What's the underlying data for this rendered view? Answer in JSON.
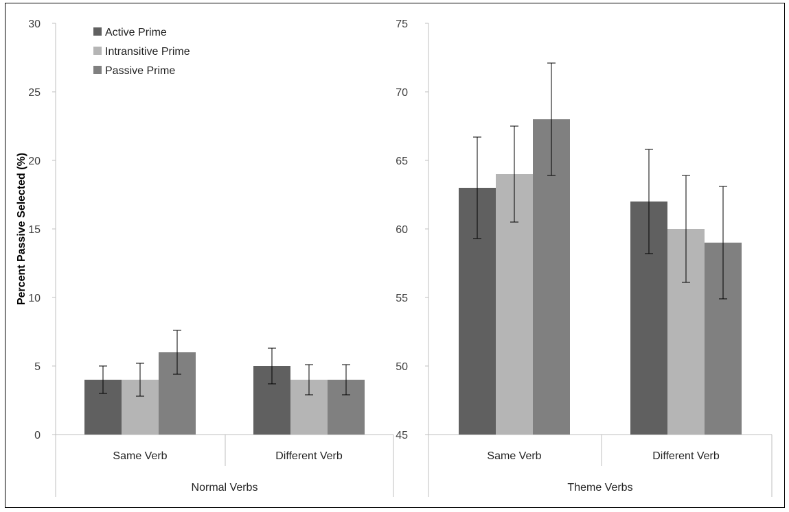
{
  "colors": {
    "Active Prime": "#606060",
    "Intransitive Prime": "#b5b5b5",
    "Passive Prime": "#808080",
    "axis": "#bfbfbf",
    "errorbar": "#000000"
  },
  "chart_data": [
    {
      "type": "bar",
      "group": "Normal Verbs",
      "categories": [
        "Same Verb",
        "Different Verb"
      ],
      "ylabel": "Percent Passive Selected (%)",
      "ylim": [
        0,
        30
      ],
      "yticks": [
        0,
        5,
        10,
        15,
        20,
        25,
        30
      ],
      "grid": false,
      "legend_position": "top-left",
      "series": [
        {
          "name": "Active Prime",
          "values": [
            4,
            5
          ],
          "err_low": [
            3.0,
            3.7
          ],
          "err_high": [
            5.0,
            6.3
          ]
        },
        {
          "name": "Intransitive Prime",
          "values": [
            4,
            4
          ],
          "err_low": [
            2.8,
            2.9
          ],
          "err_high": [
            5.2,
            5.1
          ]
        },
        {
          "name": "Passive Prime",
          "values": [
            6,
            4
          ],
          "err_low": [
            4.4,
            2.9
          ],
          "err_high": [
            7.6,
            5.1
          ]
        }
      ]
    },
    {
      "type": "bar",
      "group": "Theme Verbs",
      "categories": [
        "Same Verb",
        "Different Verb"
      ],
      "ylim": [
        45,
        75
      ],
      "yticks": [
        45,
        50,
        55,
        60,
        65,
        70,
        75
      ],
      "grid": false,
      "series": [
        {
          "name": "Active Prime",
          "values": [
            63,
            62
          ],
          "err_low": [
            59.3,
            58.2
          ],
          "err_high": [
            66.7,
            65.8
          ]
        },
        {
          "name": "Intransitive Prime",
          "values": [
            64,
            60
          ],
          "err_low": [
            60.5,
            56.1
          ],
          "err_high": [
            67.5,
            63.9
          ]
        },
        {
          "name": "Passive Prime",
          "values": [
            68,
            59
          ],
          "err_low": [
            63.9,
            54.9
          ],
          "err_high": [
            72.1,
            63.1
          ]
        }
      ]
    }
  ]
}
